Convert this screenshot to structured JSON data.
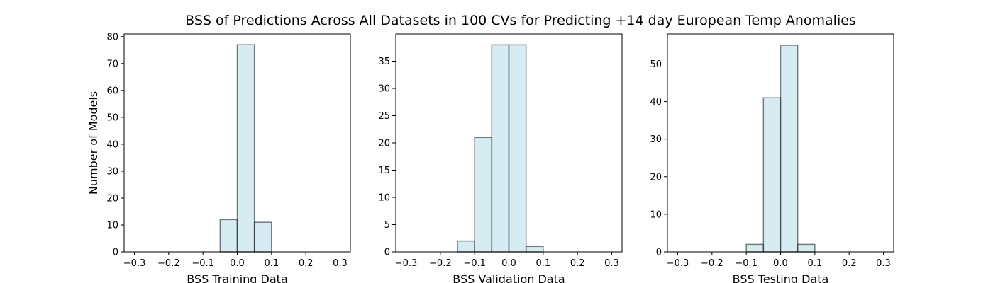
{
  "figure": {
    "title": "BSS of Predictions Across All Datasets in 100 CVs for Predicting +14 day European Temp Anomalies"
  },
  "colors": {
    "bar_fill": "#add8e6",
    "bar_edge": "#000000",
    "axes": "#000000"
  },
  "chart_data": [
    {
      "type": "bar",
      "xlabel": "BSS Training Data",
      "ylabel": "Number of Models",
      "xlim": [
        -0.33,
        0.33
      ],
      "ylim": [
        0,
        81
      ],
      "xticks": [
        -0.3,
        -0.2,
        -0.1,
        0.0,
        0.1,
        0.2,
        0.3
      ],
      "xtick_labels": [
        "−0.3",
        "−0.2",
        "−0.1",
        "0.0",
        "0.1",
        "0.2",
        "0.3"
      ],
      "yticks": [
        0,
        10,
        20,
        30,
        40,
        50,
        60,
        70,
        80
      ],
      "bins": [
        {
          "x0": -0.05,
          "x1": 0.0,
          "count": 12
        },
        {
          "x0": 0.0,
          "x1": 0.05,
          "count": 77
        },
        {
          "x0": 0.05,
          "x1": 0.1,
          "count": 11
        }
      ],
      "grid": false
    },
    {
      "type": "bar",
      "xlabel": "BSS Validation Data",
      "ylabel": "",
      "xlim": [
        -0.33,
        0.33
      ],
      "ylim": [
        0,
        40
      ],
      "xticks": [
        -0.3,
        -0.2,
        -0.1,
        0.0,
        0.1,
        0.2,
        0.3
      ],
      "xtick_labels": [
        "−0.3",
        "−0.2",
        "−0.1",
        "0.0",
        "0.1",
        "0.2",
        "0.3"
      ],
      "yticks": [
        0,
        5,
        10,
        15,
        20,
        25,
        30,
        35
      ],
      "bins": [
        {
          "x0": -0.15,
          "x1": -0.1,
          "count": 2
        },
        {
          "x0": -0.1,
          "x1": -0.05,
          "count": 21
        },
        {
          "x0": -0.05,
          "x1": 0.0,
          "count": 38
        },
        {
          "x0": 0.0,
          "x1": 0.05,
          "count": 38
        },
        {
          "x0": 0.05,
          "x1": 0.1,
          "count": 1
        }
      ],
      "grid": false
    },
    {
      "type": "bar",
      "xlabel": "BSS Testing Data",
      "ylabel": "",
      "xlim": [
        -0.33,
        0.33
      ],
      "ylim": [
        0,
        58
      ],
      "xticks": [
        -0.3,
        -0.2,
        -0.1,
        0.0,
        0.1,
        0.2,
        0.3
      ],
      "xtick_labels": [
        "−0.3",
        "−0.2",
        "−0.1",
        "0.0",
        "0.1",
        "0.2",
        "0.3"
      ],
      "yticks": [
        0,
        10,
        20,
        30,
        40,
        50
      ],
      "bins": [
        {
          "x0": -0.1,
          "x1": -0.05,
          "count": 2
        },
        {
          "x0": -0.05,
          "x1": 0.0,
          "count": 41
        },
        {
          "x0": 0.0,
          "x1": 0.05,
          "count": 55
        },
        {
          "x0": 0.05,
          "x1": 0.1,
          "count": 2
        }
      ],
      "grid": false
    }
  ]
}
